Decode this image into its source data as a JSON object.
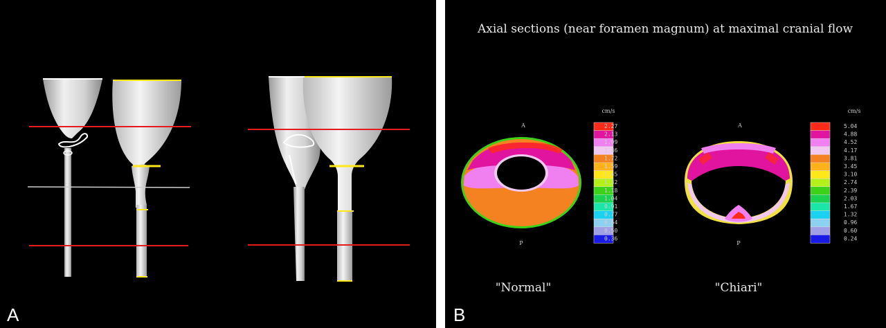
{
  "panel_a": {
    "letter": "A"
  },
  "panel_b": {
    "letter": "B",
    "title": "Axial sections (near foramen magnum) at maximal cranial flow",
    "normal": {
      "caption": "\"Normal\"",
      "anterior": "A",
      "posterior": "P",
      "unit": "cm/s",
      "scale": [
        "2.27",
        "2.13",
        "1.99",
        "1.86",
        "1.72",
        "1.59",
        "1.45",
        "1.32",
        "1.18",
        "1.04",
        "0.91",
        "0.77",
        "0.64",
        "0.50",
        "0.36"
      ]
    },
    "chiari": {
      "caption": "\"Chiari\"",
      "anterior": "A",
      "posterior": "P",
      "unit": "cm/s",
      "scale": [
        "5.04",
        "4.88",
        "4.52",
        "4.17",
        "3.81",
        "3.45",
        "3.10",
        "2.74",
        "2.39",
        "2.03",
        "1.67",
        "1.32",
        "0.96",
        "0.60",
        "0.24"
      ]
    },
    "colors": [
      "#ff2a1a",
      "#e0149e",
      "#f07ff0",
      "#f0c8f0",
      "#f58220",
      "#ffb21a",
      "#ffe81a",
      "#b4f01a",
      "#3cd21a",
      "#1ad250",
      "#1ae6aa",
      "#1ad2f0",
      "#8cd2f0",
      "#a0a0e6",
      "#1a1ae6"
    ]
  }
}
